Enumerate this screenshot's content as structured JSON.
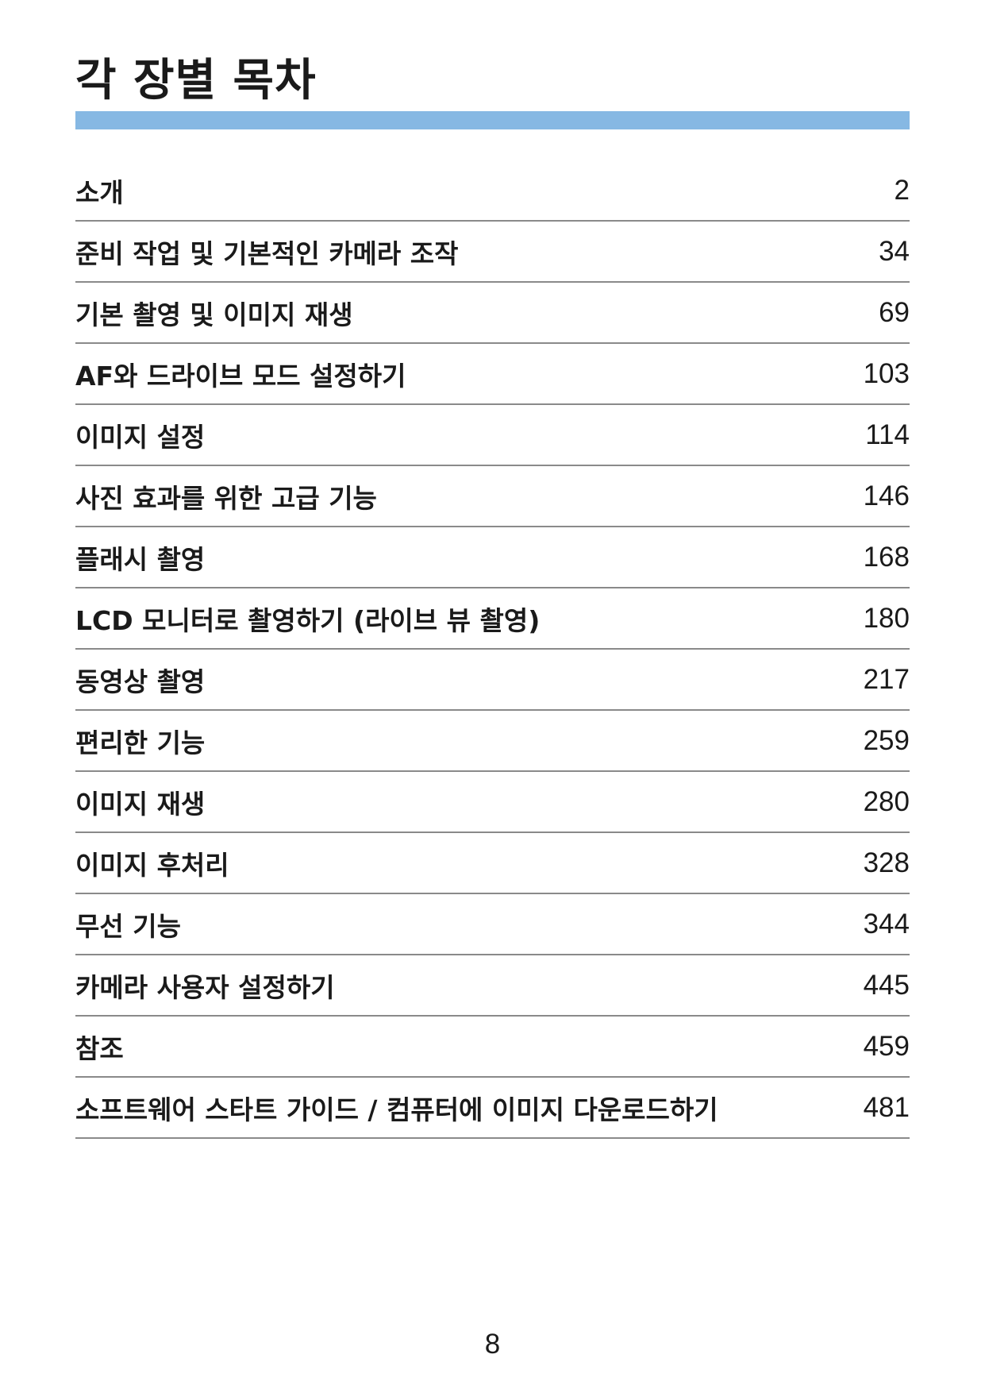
{
  "page": {
    "title": "각 장별 목차",
    "page_number": "8",
    "accent_color": "#86b8e3"
  },
  "toc": [
    {
      "title": "소개",
      "page": "2"
    },
    {
      "title": "준비 작업 및 기본적인 카메라 조작",
      "page": "34"
    },
    {
      "title": "기본 촬영 및 이미지 재생",
      "page": "69"
    },
    {
      "title": "AF와 드라이브 모드 설정하기",
      "page": "103"
    },
    {
      "title": "이미지 설정",
      "page": "114"
    },
    {
      "title": "사진 효과를 위한 고급 기능",
      "page": "146"
    },
    {
      "title": "플래시 촬영",
      "page": "168"
    },
    {
      "title": "LCD 모니터로 촬영하기 (라이브 뷰 촬영)",
      "page": "180"
    },
    {
      "title": "동영상 촬영",
      "page": "217"
    },
    {
      "title": "편리한 기능",
      "page": "259"
    },
    {
      "title": "이미지 재생",
      "page": "280"
    },
    {
      "title": "이미지 후처리",
      "page": "328"
    },
    {
      "title": "무선 기능",
      "page": "344"
    },
    {
      "title": "카메라 사용자 설정하기",
      "page": "445"
    },
    {
      "title": "참조",
      "page": "459"
    },
    {
      "title": "소프트웨어 스타트 가이드 / 컴퓨터에 이미지 다운로드하기",
      "page": "481"
    }
  ]
}
